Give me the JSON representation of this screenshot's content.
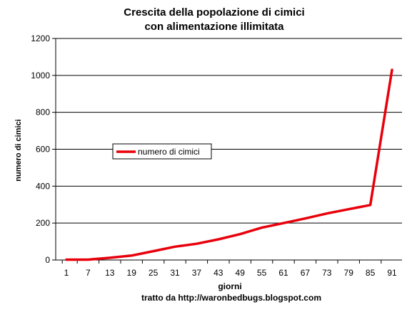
{
  "chart_data": {
    "type": "line",
    "title_lines": [
      "Crescita della popolazione di cimici",
      "con alimentazione illimitata"
    ],
    "xlabel": "giorni",
    "ylabel": "numero di cimici",
    "x_ticks": [
      "1",
      "7",
      "13",
      "19",
      "25",
      "31",
      "37",
      "43",
      "49",
      "55",
      "61",
      "67",
      "73",
      "79",
      "85",
      "91"
    ],
    "y_ticks": [
      "0",
      "200",
      "400",
      "600",
      "800",
      "1000",
      "1200"
    ],
    "ylim": [
      0,
      1200
    ],
    "xlim": [
      1,
      91
    ],
    "grid": "horizontal",
    "legend_position": "center-left",
    "series": [
      {
        "name": "numero di cimici",
        "color": "#e8000b",
        "x": [
          1,
          7,
          13,
          19,
          25,
          31,
          37,
          43,
          49,
          55,
          61,
          67,
          73,
          79,
          85,
          91
        ],
        "y": [
          2,
          2,
          12,
          24,
          48,
          72,
          88,
          112,
          140,
          175,
          200,
          225,
          252,
          275,
          298,
          1030
        ]
      }
    ]
  },
  "source_note": "tratto da http://waronbedbugs.blogspot.com"
}
